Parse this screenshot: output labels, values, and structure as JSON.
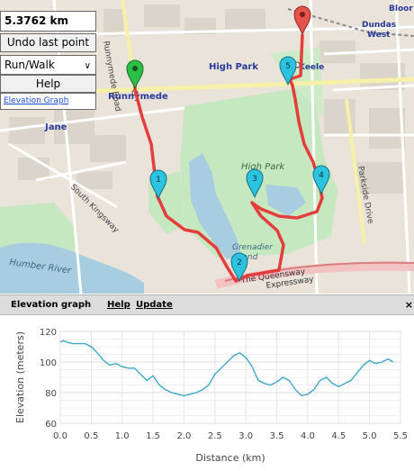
{
  "controls": {
    "distance": "5.3762 km",
    "undo_label": "Undo last point",
    "mode_value": "Run/Walk",
    "help_label": "Help",
    "elevation_link": "Elevation Graph"
  },
  "map": {
    "labels": {
      "runnymede_road": "Runnymede Road",
      "runnymede": "Runnymede",
      "jane": "Jane",
      "high_park_area": "High Park",
      "high_park": "High Park",
      "keele": "Keele",
      "dundas_west": "Dundas\nWest",
      "bloor": "Bloor",
      "parkside_drive": "Parkside Drive",
      "south_kingsway": "South Kingsway",
      "grenadier_pond": "Grenadier\nPond",
      "humber_river": "Humber River",
      "queensway": "The Queensway",
      "gardiner": "Expressway"
    },
    "markers": [
      "1",
      "2",
      "3",
      "4",
      "5"
    ],
    "colors": {
      "route": "#e5383b",
      "start": "#2bbf45",
      "end": "#e5534b",
      "waypoint": "#2bc3df"
    }
  },
  "panel": {
    "title": "Elevation graph",
    "help": "Help",
    "update": "Update",
    "close": "×"
  },
  "chart_data": {
    "type": "line",
    "xlabel": "Distance (km)",
    "ylabel": "Elevation (meters)",
    "xlim": [
      0,
      5.5
    ],
    "ylim": [
      60,
      120
    ],
    "xticks": [
      "0.0",
      "0.5",
      "1.0",
      "1.5",
      "2.0",
      "2.5",
      "3.0",
      "3.5",
      "4.0",
      "4.5",
      "5.0",
      "5.5"
    ],
    "yticks": [
      "60",
      "80",
      "100",
      "120"
    ],
    "grid": true,
    "color": "#3fa7c8",
    "series": [
      {
        "x": [
          0.0,
          0.05,
          0.1,
          0.2,
          0.3,
          0.4,
          0.5,
          0.6,
          0.7,
          0.8,
          0.9,
          1.0,
          1.1,
          1.2,
          1.3,
          1.4,
          1.5,
          1.6,
          1.7,
          1.8,
          1.9,
          2.0,
          2.1,
          2.2,
          2.3,
          2.4,
          2.5,
          2.6,
          2.7,
          2.8,
          2.9,
          3.0,
          3.1,
          3.2,
          3.3,
          3.4,
          3.5,
          3.6,
          3.7,
          3.8,
          3.9,
          4.0,
          4.1,
          4.2,
          4.3,
          4.4,
          4.5,
          4.6,
          4.7,
          4.8,
          4.9,
          5.0,
          5.1,
          5.2,
          5.3,
          5.38
        ],
        "y": [
          113,
          114,
          113,
          112,
          112,
          112,
          110,
          106,
          101,
          98,
          99,
          97,
          96,
          96,
          92,
          88,
          91,
          85,
          82,
          80,
          79,
          78,
          79,
          80,
          82,
          85,
          92,
          96,
          100,
          104,
          106,
          103,
          97,
          88,
          86,
          85,
          87,
          90,
          88,
          82,
          78,
          79,
          82,
          88,
          90,
          86,
          84,
          86,
          88,
          93,
          98,
          101,
          99,
          100,
          102,
          100
        ]
      }
    ]
  }
}
